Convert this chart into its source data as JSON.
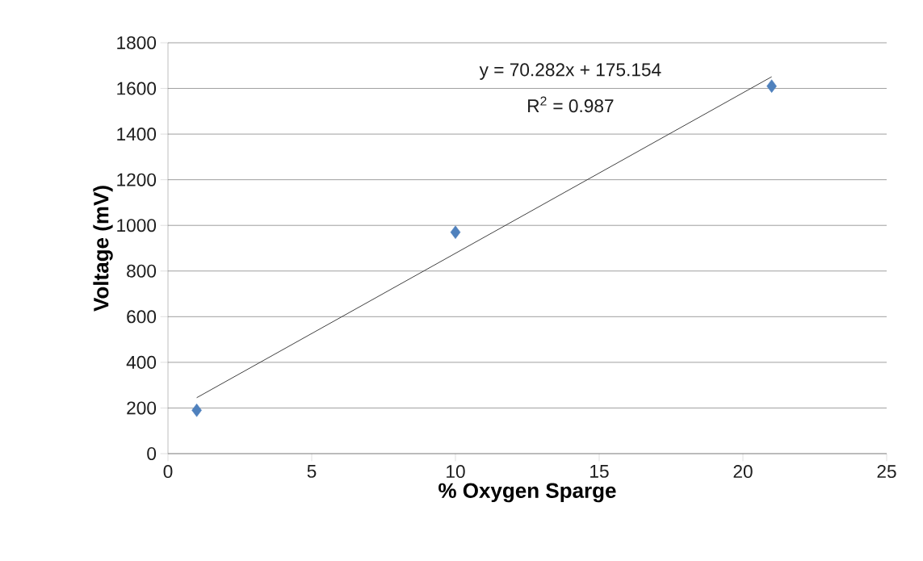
{
  "chart_data": {
    "type": "scatter",
    "xlabel": "% Oxygen Sparge",
    "ylabel": "Voltage (mV)",
    "xlim": [
      0,
      25
    ],
    "xticks": [
      0,
      5,
      10,
      15,
      20,
      25
    ],
    "ylim": [
      0,
      1800
    ],
    "yticks": [
      0,
      200,
      400,
      600,
      800,
      1000,
      1200,
      1400,
      1600,
      1800
    ],
    "grid": "y",
    "marker": "diamond",
    "series": [
      {
        "color": "#4f81bd",
        "x": [
          1,
          10,
          21
        ],
        "values": [
          190,
          970,
          1610
        ]
      },
      {
        "type": "line",
        "color": "#404040",
        "marker": "none",
        "x": [
          1,
          21
        ],
        "values": [
          245,
          1651
        ]
      }
    ],
    "annotations": [
      "y = 70.282x + 175.154",
      "R$^{2}$ = 0.987"
    ]
  }
}
